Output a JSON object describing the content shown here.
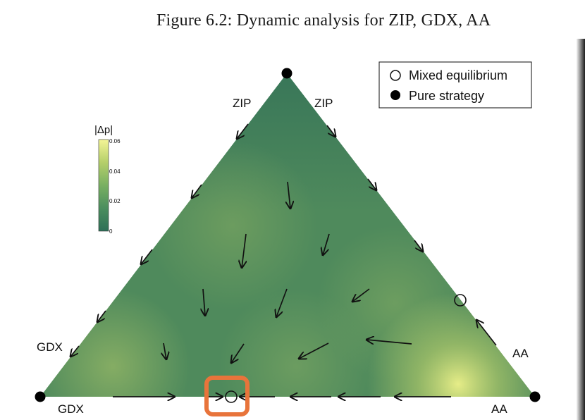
{
  "figure": {
    "title": "Figure 6.2: Dynamic analysis for ZIP, GDX, AA"
  },
  "legend": {
    "items": [
      {
        "label": "Mixed equilibrium",
        "marker": "open-circle"
      },
      {
        "label": "Pure strategy",
        "marker": "filled-circle"
      }
    ]
  },
  "colorbar": {
    "title": "|Δp|",
    "ticks": [
      "0.06",
      "0.04",
      "0.02",
      "0"
    ],
    "colors": [
      "#f4f596",
      "#b5cf6a",
      "#79b062",
      "#4b8e5e",
      "#2e6f57"
    ]
  },
  "vertex_labels": {
    "zip_left": "ZIP",
    "zip_right": "ZIP",
    "gdx_side": "GDX",
    "gdx_bottom": "GDX",
    "aa_side": "AA",
    "aa_bottom": "AA"
  },
  "colors": {
    "base_field": "#4f8a5c",
    "highlight_box": "#e8743b"
  },
  "chart_data": {
    "type": "ternary-vector-field",
    "vertices": [
      "ZIP",
      "GDX",
      "AA"
    ],
    "pure_strategy_points": [
      "ZIP",
      "GDX",
      "AA"
    ],
    "mixed_equilibria": [
      {
        "ZIP": 0.0,
        "GDX": 0.62,
        "AA": 0.38,
        "highlighted": true
      },
      {
        "ZIP": 0.3,
        "GDX": 0.0,
        "AA": 0.7,
        "highlighted": false
      }
    ]
  }
}
